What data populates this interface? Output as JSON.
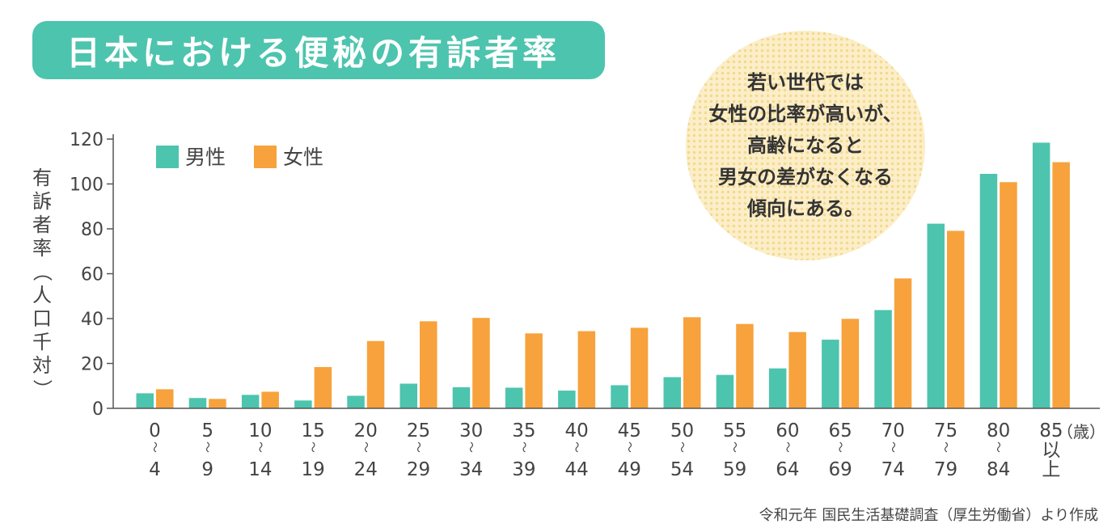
{
  "title": "日本における便秘の有訴者率",
  "note": [
    "若い世代では",
    "女性の比率が高いが、",
    "高齢になると",
    "男女の差がなくなる",
    "傾向にある。"
  ],
  "source": "令和元年 国民生活基礎調査（厚生労働省）より作成",
  "chart_data": {
    "type": "bar",
    "ylabel": "有訴者率（人口千対）",
    "x_unit": "（歳）",
    "ylim": [
      0,
      120
    ],
    "yticks": [
      "0",
      "20",
      "40",
      "60",
      "80",
      "100",
      "120"
    ],
    "categories": [
      [
        "0",
        "〜",
        "4"
      ],
      [
        "5",
        "〜",
        "9"
      ],
      [
        "10",
        "〜",
        "14"
      ],
      [
        "15",
        "〜",
        "19"
      ],
      [
        "20",
        "〜",
        "24"
      ],
      [
        "25",
        "〜",
        "29"
      ],
      [
        "30",
        "〜",
        "34"
      ],
      [
        "35",
        "〜",
        "39"
      ],
      [
        "40",
        "〜",
        "44"
      ],
      [
        "45",
        "〜",
        "49"
      ],
      [
        "50",
        "〜",
        "54"
      ],
      [
        "55",
        "〜",
        "59"
      ],
      [
        "60",
        "〜",
        "64"
      ],
      [
        "65",
        "〜",
        "69"
      ],
      [
        "70",
        "〜",
        "74"
      ],
      [
        "75",
        "〜",
        "79"
      ],
      [
        "80",
        "〜",
        "84"
      ],
      [
        "85",
        "以",
        "上"
      ]
    ],
    "series": [
      {
        "name": "男性",
        "color": "#4dc4ae",
        "values": [
          6.7,
          4.6,
          6.0,
          3.5,
          5.6,
          11.0,
          9.4,
          9.2,
          7.9,
          10.3,
          13.9,
          14.9,
          17.8,
          30.6,
          43.8,
          82.3,
          104.5,
          118.4
        ]
      },
      {
        "name": "女性",
        "color": "#f7a23c",
        "values": [
          8.5,
          4.2,
          7.4,
          18.4,
          30.0,
          38.8,
          40.3,
          33.4,
          34.4,
          35.9,
          40.6,
          37.6,
          34.0,
          39.9,
          57.9,
          79.1,
          100.8,
          109.7
        ]
      }
    ],
    "legend": "top-left",
    "grid": false
  }
}
